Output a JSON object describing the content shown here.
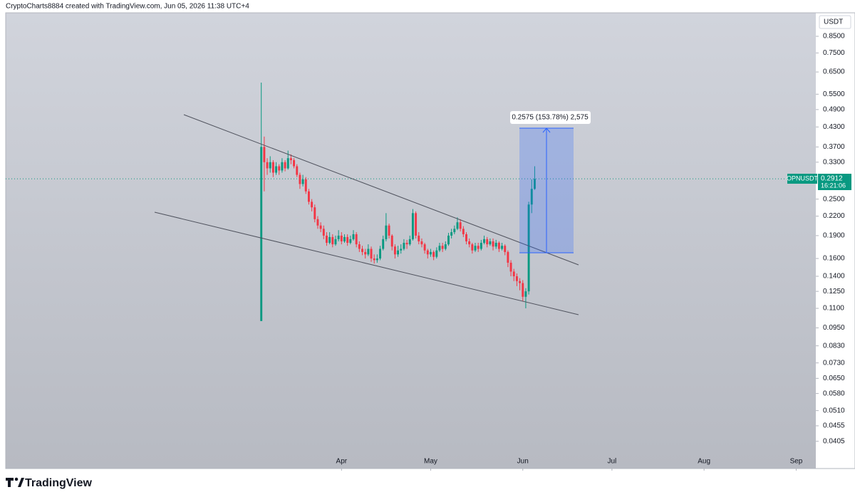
{
  "header": "CryptoCharts8884 created with TradingView.com, Jun 05, 2026 11:38 UTC+4",
  "footer": {
    "brand": "TradingView"
  },
  "chart_data": {
    "type": "candlestick",
    "currency": "USDT",
    "symbol": "OPNUSDT",
    "last_price": 0.2912,
    "countdown": "16:21:06",
    "annotation": "0.2575 (153.78%) 2,575",
    "log_scale": true,
    "colors": {
      "up": "#089981",
      "down": "#f23645"
    },
    "open": [
      0.1,
      0.37,
      0.33,
      0.315,
      0.33,
      0.305,
      0.32,
      0.31,
      0.33,
      0.315,
      0.34,
      0.335,
      0.32,
      0.3,
      0.28,
      0.29,
      0.265,
      0.245,
      0.235,
      0.215,
      0.205,
      0.2,
      0.19,
      0.18,
      0.188,
      0.178,
      0.185,
      0.19,
      0.182,
      0.188,
      0.18,
      0.185,
      0.192,
      0.178,
      0.172,
      0.168,
      0.165,
      0.172,
      0.16,
      0.158,
      0.16,
      0.172,
      0.185,
      0.205,
      0.19,
      0.175,
      0.165,
      0.17,
      0.172,
      0.18,
      0.178,
      0.185,
      0.225,
      0.19,
      0.182,
      0.178,
      0.17,
      0.165,
      0.168,
      0.162,
      0.17,
      0.176,
      0.172,
      0.178,
      0.19,
      0.195,
      0.2,
      0.21,
      0.2,
      0.192,
      0.182,
      0.178,
      0.17,
      0.176,
      0.172,
      0.18,
      0.185,
      0.178,
      0.182,
      0.175,
      0.18,
      0.172,
      0.176,
      0.168,
      0.155,
      0.145,
      0.14,
      0.135,
      0.133,
      0.12,
      0.125,
      0.24,
      0.27
    ],
    "high": [
      0.6,
      0.4,
      0.34,
      0.345,
      0.335,
      0.33,
      0.325,
      0.34,
      0.335,
      0.36,
      0.35,
      0.34,
      0.325,
      0.305,
      0.3,
      0.295,
      0.27,
      0.25,
      0.24,
      0.22,
      0.21,
      0.205,
      0.195,
      0.195,
      0.192,
      0.19,
      0.198,
      0.195,
      0.192,
      0.192,
      0.19,
      0.198,
      0.195,
      0.182,
      0.176,
      0.172,
      0.178,
      0.175,
      0.165,
      0.165,
      0.176,
      0.19,
      0.225,
      0.208,
      0.192,
      0.178,
      0.176,
      0.178,
      0.185,
      0.184,
      0.19,
      0.232,
      0.228,
      0.195,
      0.186,
      0.18,
      0.172,
      0.172,
      0.17,
      0.174,
      0.18,
      0.18,
      0.182,
      0.194,
      0.2,
      0.205,
      0.218,
      0.215,
      0.204,
      0.195,
      0.186,
      0.18,
      0.18,
      0.18,
      0.184,
      0.19,
      0.188,
      0.186,
      0.186,
      0.184,
      0.182,
      0.18,
      0.178,
      0.17,
      0.158,
      0.148,
      0.143,
      0.138,
      0.136,
      0.128,
      0.245,
      0.29,
      0.32
    ],
    "low": [
      0.1,
      0.265,
      0.3,
      0.305,
      0.295,
      0.3,
      0.3,
      0.305,
      0.308,
      0.312,
      0.325,
      0.315,
      0.295,
      0.27,
      0.275,
      0.26,
      0.24,
      0.228,
      0.21,
      0.2,
      0.195,
      0.185,
      0.176,
      0.178,
      0.174,
      0.176,
      0.182,
      0.178,
      0.18,
      0.176,
      0.178,
      0.183,
      0.174,
      0.168,
      0.164,
      0.16,
      0.163,
      0.156,
      0.154,
      0.155,
      0.158,
      0.17,
      0.182,
      0.186,
      0.17,
      0.16,
      0.162,
      0.166,
      0.17,
      0.172,
      0.176,
      0.183,
      0.186,
      0.178,
      0.174,
      0.166,
      0.16,
      0.162,
      0.158,
      0.16,
      0.168,
      0.168,
      0.17,
      0.176,
      0.186,
      0.192,
      0.198,
      0.196,
      0.188,
      0.178,
      0.174,
      0.166,
      0.168,
      0.168,
      0.17,
      0.178,
      0.174,
      0.176,
      0.17,
      0.172,
      0.168,
      0.17,
      0.164,
      0.15,
      0.14,
      0.135,
      0.13,
      0.126,
      0.116,
      0.11,
      0.122,
      0.225,
      0.268
    ],
    "close": [
      0.37,
      0.33,
      0.315,
      0.33,
      0.305,
      0.32,
      0.31,
      0.33,
      0.315,
      0.34,
      0.335,
      0.32,
      0.3,
      0.28,
      0.29,
      0.265,
      0.245,
      0.235,
      0.215,
      0.205,
      0.2,
      0.19,
      0.18,
      0.188,
      0.178,
      0.185,
      0.19,
      0.182,
      0.188,
      0.18,
      0.185,
      0.192,
      0.178,
      0.172,
      0.168,
      0.165,
      0.172,
      0.16,
      0.158,
      0.16,
      0.172,
      0.185,
      0.205,
      0.19,
      0.175,
      0.165,
      0.17,
      0.172,
      0.18,
      0.178,
      0.185,
      0.225,
      0.19,
      0.182,
      0.178,
      0.17,
      0.165,
      0.168,
      0.162,
      0.17,
      0.176,
      0.172,
      0.178,
      0.19,
      0.195,
      0.2,
      0.21,
      0.2,
      0.192,
      0.182,
      0.178,
      0.17,
      0.176,
      0.172,
      0.18,
      0.185,
      0.178,
      0.182,
      0.175,
      0.18,
      0.172,
      0.176,
      0.168,
      0.155,
      0.145,
      0.14,
      0.135,
      0.133,
      0.12,
      0.125,
      0.24,
      0.27,
      0.291
    ],
    "ylim": [
      0.033,
      1.014
    ],
    "yticks": [
      {
        "value": 0.85,
        "label": "0.8500"
      },
      {
        "value": 0.75,
        "label": "0.7500"
      },
      {
        "value": 0.65,
        "label": "0.6500"
      },
      {
        "value": 0.55,
        "label": "0.5500"
      },
      {
        "value": 0.49,
        "label": "0.4900"
      },
      {
        "value": 0.43,
        "label": "0.4300"
      },
      {
        "value": 0.37,
        "label": "0.3700"
      },
      {
        "value": 0.33,
        "label": "0.3300"
      },
      {
        "value": 0.25,
        "label": "0.2500"
      },
      {
        "value": 0.22,
        "label": "0.2200"
      },
      {
        "value": 0.19,
        "label": "0.1900"
      },
      {
        "value": 0.16,
        "label": "0.1600"
      },
      {
        "value": 0.14,
        "label": "0.1400"
      },
      {
        "value": 0.125,
        "label": "0.1250"
      },
      {
        "value": 0.11,
        "label": "0.1100"
      },
      {
        "value": 0.095,
        "label": "0.0950"
      },
      {
        "value": 0.083,
        "label": "0.0830"
      },
      {
        "value": 0.073,
        "label": "0.0730"
      },
      {
        "value": 0.065,
        "label": "0.0650"
      },
      {
        "value": 0.058,
        "label": "0.0580"
      },
      {
        "value": 0.051,
        "label": "0.0510"
      },
      {
        "value": 0.0455,
        "label": "0.0455"
      },
      {
        "value": 0.0405,
        "label": "0.0405"
      }
    ],
    "xlim": [
      -86,
      186.6
    ],
    "xticks": [
      {
        "value": 27,
        "label": "Apr"
      },
      {
        "value": 57,
        "label": "May"
      },
      {
        "value": 88,
        "label": "Jun"
      },
      {
        "value": 118,
        "label": "Jul"
      },
      {
        "value": 149,
        "label": "Aug"
      },
      {
        "value": 180,
        "label": "Sep"
      }
    ]
  }
}
